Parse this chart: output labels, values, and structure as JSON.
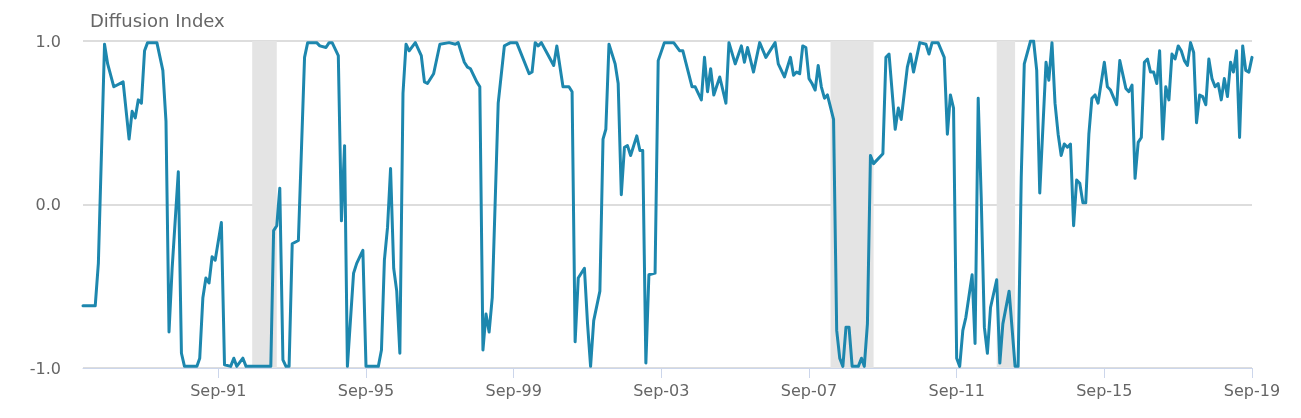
{
  "chart_data": {
    "type": "line",
    "ylabel": "Diffusion Index",
    "xlim": [
      "1988-01",
      "2019-09"
    ],
    "ylim": [
      -1,
      1
    ],
    "xticks": [
      {
        "value": "1991-09",
        "label": "Sep-91"
      },
      {
        "value": "1995-09",
        "label": "Sep-95"
      },
      {
        "value": "1999-09",
        "label": "Sep-99"
      },
      {
        "value": "2003-09",
        "label": "Sep-03"
      },
      {
        "value": "2007-09",
        "label": "Sep-07"
      },
      {
        "value": "2011-09",
        "label": "Sep-11"
      },
      {
        "value": "2015-09",
        "label": "Sep-15"
      },
      {
        "value": "2019-09",
        "label": "Sep-19"
      }
    ],
    "yticks": [
      {
        "value": -1,
        "label": "-1.0"
      },
      {
        "value": 0,
        "label": "0.0"
      },
      {
        "value": 1,
        "label": "1.0"
      }
    ],
    "grid": "y",
    "marker": "none",
    "line_style": "solid",
    "bands": [
      {
        "axis": "x",
        "from": "1992-08",
        "to": "1993-04",
        "color": "#e4e4e4"
      },
      {
        "axis": "x",
        "from": "2008-04",
        "to": "2009-06",
        "color": "#e4e4e4"
      },
      {
        "axis": "x",
        "from": "2012-10",
        "to": "2013-04",
        "color": "#e4e4e4"
      }
    ],
    "series": [
      {
        "color": "#1d87ae",
        "x": [
          "1988-01",
          "1988-05",
          "1988-06",
          "1988-08",
          "1988-09",
          "1988-11",
          "1989-02",
          "1989-04",
          "1989-05",
          "1989-06",
          "1989-07",
          "1989-08",
          "1989-09",
          "1989-10",
          "1990-01",
          "1990-03",
          "1990-04",
          "1990-05",
          "1990-06",
          "1990-08",
          "1990-09",
          "1990-10",
          "1991-02",
          "1991-03",
          "1991-04",
          "1991-05",
          "1991-06",
          "1991-07",
          "1991-08",
          "1991-10",
          "1991-11",
          "1992-01",
          "1992-02",
          "1992-03",
          "1992-05",
          "1992-06",
          "1993-02",
          "1993-03",
          "1993-04",
          "1993-05",
          "1993-06",
          "1993-07",
          "1993-08",
          "1993-09",
          "1993-11",
          "1994-01",
          "1994-02",
          "1994-05",
          "1994-06",
          "1994-08",
          "1994-09",
          "1994-10",
          "1994-12",
          "1995-01",
          "1995-02",
          "1995-03",
          "1995-05",
          "1995-06",
          "1995-08",
          "1995-09",
          "1995-12",
          "1996-01",
          "1996-02",
          "1996-03",
          "1996-04",
          "1996-05",
          "1996-06",
          "1996-07",
          "1996-08",
          "1996-09",
          "1996-10",
          "1996-11",
          "1997-01",
          "1997-03",
          "1997-04",
          "1997-05",
          "1997-07",
          "1997-09",
          "1997-12",
          "1998-02",
          "1998-03",
          "1998-05",
          "1998-06",
          "1998-07",
          "1998-09",
          "1998-10",
          "1998-11",
          "1998-12",
          "1999-01",
          "1999-02",
          "1999-04",
          "1999-06",
          "1999-08",
          "1999-10",
          "2000-02",
          "2000-03",
          "2000-04",
          "2000-05",
          "2000-06",
          "2000-08",
          "2000-10",
          "2000-11",
          "2001-01",
          "2001-03",
          "2001-04",
          "2001-05",
          "2001-06",
          "2001-08",
          "2001-09",
          "2001-10",
          "2001-11",
          "2002-01",
          "2002-02",
          "2002-03",
          "2002-04",
          "2002-06",
          "2002-07",
          "2002-08",
          "2002-09",
          "2002-10",
          "2002-11",
          "2003-01",
          "2003-02",
          "2003-03",
          "2003-04",
          "2003-05",
          "2003-07",
          "2003-08",
          "2003-10",
          "2003-11",
          "2004-01",
          "2004-03",
          "2004-04",
          "2004-07",
          "2004-08",
          "2004-10",
          "2004-11",
          "2004-12",
          "2005-01",
          "2005-02",
          "2005-04",
          "2005-06",
          "2005-07",
          "2005-09",
          "2005-11",
          "2005-12",
          "2006-01",
          "2006-03",
          "2006-05",
          "2006-07",
          "2006-10",
          "2006-11",
          "2007-01",
          "2007-03",
          "2007-04",
          "2007-05",
          "2007-06",
          "2007-07",
          "2007-08",
          "2007-09",
          "2007-10",
          "2007-11",
          "2007-12",
          "2008-01",
          "2008-02",
          "2008-03",
          "2008-05",
          "2008-06",
          "2008-07",
          "2008-08",
          "2008-09",
          "2008-10",
          "2008-11",
          "2009-01",
          "2009-02",
          "2009-03",
          "2009-04",
          "2009-05",
          "2009-06",
          "2009-09",
          "2009-10",
          "2009-11",
          "2010-01",
          "2010-02",
          "2010-03",
          "2010-05",
          "2010-06",
          "2010-07",
          "2010-09",
          "2010-11",
          "2010-12",
          "2011-01",
          "2011-03",
          "2011-05",
          "2011-06",
          "2011-07",
          "2011-08",
          "2011-09",
          "2011-10",
          "2011-11",
          "2011-12",
          "2012-02",
          "2012-03",
          "2012-04",
          "2012-05",
          "2012-06",
          "2012-07",
          "2012-08",
          "2012-10",
          "2012-11",
          "2012-12",
          "2013-02",
          "2013-04",
          "2013-05",
          "2013-06",
          "2013-07",
          "2013-09",
          "2013-10",
          "2013-11",
          "2013-12",
          "2014-02",
          "2014-03",
          "2014-04",
          "2014-05",
          "2014-06",
          "2014-07",
          "2014-08",
          "2014-09",
          "2014-10",
          "2014-11",
          "2014-12",
          "2015-01",
          "2015-02",
          "2015-03",
          "2015-04",
          "2015-05",
          "2015-06",
          "2015-07",
          "2015-09",
          "2015-10",
          "2015-11",
          "2016-01",
          "2016-02",
          "2016-04",
          "2016-05",
          "2016-06",
          "2016-07",
          "2016-08",
          "2016-09",
          "2016-10",
          "2016-11",
          "2016-12",
          "2017-01",
          "2017-02",
          "2017-03",
          "2017-04",
          "2017-05",
          "2017-06",
          "2017-07",
          "2017-08",
          "2017-09",
          "2017-10",
          "2017-11",
          "2017-12",
          "2018-01",
          "2018-02",
          "2018-03",
          "2018-04",
          "2018-05",
          "2018-06",
          "2018-07",
          "2018-08",
          "2018-09",
          "2018-10",
          "2018-11",
          "2018-12",
          "2019-01",
          "2019-02",
          "2019-03",
          "2019-04",
          "2019-05",
          "2019-06",
          "2019-07",
          "2019-08",
          "2019-09"
        ],
        "values": [
          -0.62,
          -0.62,
          -0.36,
          0.98,
          0.86,
          0.72,
          0.75,
          0.4,
          0.57,
          0.53,
          0.64,
          0.62,
          0.94,
          0.99,
          0.99,
          0.82,
          0.51,
          -0.78,
          -0.39,
          0.2,
          -0.91,
          -0.99,
          -0.99,
          -0.94,
          -0.57,
          -0.45,
          -0.48,
          -0.32,
          -0.34,
          -0.11,
          -0.98,
          -0.99,
          -0.94,
          -0.99,
          -0.94,
          -0.99,
          -0.99,
          -0.16,
          -0.13,
          0.1,
          -0.95,
          -0.99,
          -0.99,
          -0.24,
          -0.22,
          0.9,
          0.99,
          0.99,
          0.97,
          0.96,
          0.99,
          0.99,
          0.91,
          -0.1,
          0.36,
          -0.99,
          -0.42,
          -0.36,
          -0.28,
          -0.99,
          -0.99,
          -0.99,
          -0.89,
          -0.34,
          -0.14,
          0.22,
          -0.39,
          -0.53,
          -0.91,
          0.68,
          0.98,
          0.94,
          0.99,
          0.91,
          0.75,
          0.74,
          0.8,
          0.98,
          0.99,
          0.98,
          0.99,
          0.87,
          0.84,
          0.83,
          0.75,
          0.72,
          -0.89,
          -0.67,
          -0.78,
          -0.57,
          0.62,
          0.97,
          0.99,
          0.99,
          0.8,
          0.81,
          0.99,
          0.97,
          0.99,
          0.92,
          0.85,
          0.97,
          0.72,
          0.72,
          0.69,
          -0.84,
          -0.45,
          -0.39,
          -0.73,
          -0.99,
          -0.71,
          -0.53,
          0.4,
          0.46,
          0.98,
          0.86,
          0.74,
          0.06,
          0.35,
          0.36,
          0.3,
          0.42,
          0.33,
          0.33,
          -0.97,
          -0.43,
          -0.42,
          0.88,
          0.99,
          0.99,
          0.99,
          0.94,
          0.94,
          0.72,
          0.72,
          0.64,
          0.9,
          0.69,
          0.83,
          0.67,
          0.78,
          0.62,
          0.99,
          0.86,
          0.97,
          0.87,
          0.96,
          0.81,
          0.99,
          0.9,
          0.99,
          0.86,
          0.78,
          0.9,
          0.79,
          0.81,
          0.8,
          0.97,
          0.96,
          0.77,
          0.74,
          0.7,
          0.85,
          0.72,
          0.65,
          0.67,
          0.52,
          -0.77,
          -0.94,
          -0.99,
          -0.75,
          -0.75,
          -0.99,
          -0.99,
          -0.94,
          -0.99,
          -0.73,
          0.3,
          0.25,
          0.31,
          0.9,
          0.92,
          0.46,
          0.59,
          0.52,
          0.84,
          0.92,
          0.81,
          0.99,
          0.98,
          0.92,
          0.99,
          0.99,
          0.9,
          0.43,
          0.67,
          0.59,
          -0.94,
          -0.99,
          -0.77,
          -0.69,
          -0.43,
          -0.85,
          0.65,
          0.04,
          -0.75,
          -0.91,
          -0.63,
          -0.46,
          -0.97,
          -0.73,
          -0.53,
          -0.99,
          -0.99,
          0.17,
          0.86,
          1.0,
          1.0,
          0.82,
          0.07,
          0.87,
          0.76,
          0.99,
          0.62,
          0.43,
          0.3,
          0.37,
          0.35,
          0.37,
          -0.13,
          0.15,
          0.13,
          0.01,
          0.01,
          0.43,
          0.65,
          0.67,
          0.62,
          0.87,
          0.72,
          0.7,
          0.61,
          0.88,
          0.71,
          0.69,
          0.73,
          0.16,
          0.38,
          0.41,
          0.87,
          0.89,
          0.81,
          0.81,
          0.74,
          0.94,
          0.4,
          0.72,
          0.64,
          0.92,
          0.89,
          0.97,
          0.94,
          0.88,
          0.85,
          0.99,
          0.93,
          0.5,
          0.67,
          0.66,
          0.61,
          0.89,
          0.77,
          0.72,
          0.74,
          0.64,
          0.77,
          0.66,
          0.87,
          0.81,
          0.94,
          0.41,
          0.97,
          0.82,
          0.81,
          0.9
        ]
      }
    ]
  }
}
